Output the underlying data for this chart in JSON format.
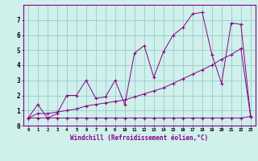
{
  "xlabel": "Windchill (Refroidissement éolien,°C)",
  "background_color": "#cff0eb",
  "line_color": "#880088",
  "grid_color": "#99cccc",
  "xlim": [
    -0.5,
    23.5
  ],
  "ylim": [
    0,
    8
  ],
  "xticks": [
    0,
    1,
    2,
    3,
    4,
    5,
    6,
    7,
    8,
    9,
    10,
    11,
    12,
    13,
    14,
    15,
    16,
    17,
    18,
    19,
    20,
    21,
    22,
    23
  ],
  "yticks": [
    0,
    1,
    2,
    3,
    4,
    5,
    6,
    7
  ],
  "line1_x": [
    0,
    1,
    2,
    3,
    4,
    5,
    6,
    7,
    8,
    9,
    10,
    11,
    12,
    13,
    14,
    15,
    16,
    17,
    18,
    19,
    20,
    21,
    22,
    23
  ],
  "line1_y": [
    0.5,
    1.4,
    0.5,
    0.8,
    2.0,
    2.0,
    3.0,
    1.8,
    1.9,
    3.0,
    1.4,
    4.8,
    5.3,
    3.2,
    4.9,
    6.0,
    6.5,
    7.4,
    7.5,
    4.7,
    2.8,
    6.8,
    6.7,
    0.6
  ],
  "line2_x": [
    0,
    1,
    2,
    3,
    4,
    5,
    6,
    7,
    8,
    9,
    10,
    11,
    12,
    13,
    14,
    15,
    16,
    17,
    18,
    19,
    20,
    21,
    22,
    23
  ],
  "line2_y": [
    0.5,
    0.5,
    0.5,
    0.5,
    0.5,
    0.5,
    0.5,
    0.5,
    0.5,
    0.5,
    0.5,
    0.5,
    0.5,
    0.5,
    0.5,
    0.5,
    0.5,
    0.5,
    0.5,
    0.5,
    0.5,
    0.5,
    0.5,
    0.6
  ],
  "line3_x": [
    0,
    1,
    2,
    3,
    4,
    5,
    6,
    7,
    8,
    9,
    10,
    11,
    12,
    13,
    14,
    15,
    16,
    17,
    18,
    19,
    20,
    21,
    22,
    23
  ],
  "line3_y": [
    0.5,
    0.8,
    0.8,
    0.9,
    1.0,
    1.1,
    1.3,
    1.4,
    1.5,
    1.6,
    1.7,
    1.9,
    2.1,
    2.3,
    2.5,
    2.8,
    3.1,
    3.4,
    3.7,
    4.0,
    4.4,
    4.7,
    5.1,
    0.6
  ]
}
